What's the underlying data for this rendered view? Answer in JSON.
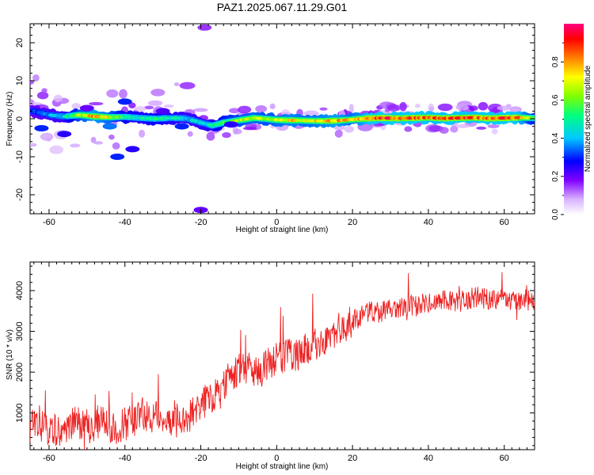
{
  "figure": {
    "title": "PAZ1.2025.067.11.29.G01"
  },
  "chart_data": [
    {
      "type": "heatmap",
      "name": "spectrogram",
      "xlabel": "Height of straight line (km)",
      "ylabel": "Frequency (Hz)",
      "xlim": [
        -65,
        68
      ],
      "ylim": [
        -25,
        25
      ],
      "xticks": [
        "-60",
        "-40",
        "-20",
        "0",
        "20",
        "40",
        "60"
      ],
      "xtick_values": [
        -60,
        -40,
        -20,
        0,
        20,
        40,
        60
      ],
      "yticks": [
        "-20",
        "-10",
        "0",
        "10",
        "20"
      ],
      "ytick_values": [
        -20,
        -10,
        0,
        10,
        20
      ],
      "colorbar": {
        "label": "Normalized spectral amplitude",
        "range": [
          0,
          1
        ],
        "ticks": [
          "0.0",
          "0.2",
          "0.4",
          "0.6",
          "0.8"
        ],
        "tick_values": [
          0.0,
          0.2,
          0.4,
          0.6,
          0.8
        ],
        "colors": [
          "#ffffff",
          "#d9b3ff",
          "#8000ff",
          "#0000ff",
          "#00c8ff",
          "#00ff80",
          "#80ff00",
          "#ffff00",
          "#ff8000",
          "#ff0000",
          "#ff0080"
        ]
      },
      "ridge": {
        "description": "Main signal ridge frequency (Hz) vs height (km)",
        "x": [
          -64,
          -60,
          -56,
          -52,
          -48,
          -44,
          -40,
          -36,
          -32,
          -28,
          -24,
          -20,
          -17,
          -14,
          -10,
          -6,
          -3,
          0,
          4,
          8,
          12,
          16,
          20,
          24,
          28,
          32,
          36,
          40,
          44,
          48,
          52,
          56,
          60,
          64,
          68
        ],
        "y": [
          2.0,
          1.0,
          0.6,
          1.0,
          0.6,
          0.4,
          0.5,
          0.2,
          0.0,
          0.2,
          0.1,
          -1.0,
          -1.8,
          -1.0,
          -0.4,
          0.2,
          0.0,
          -0.3,
          -0.4,
          -0.5,
          -0.6,
          -0.5,
          -0.2,
          0.1,
          0.2,
          0.1,
          0.2,
          0.3,
          0.1,
          0.2,
          0.3,
          0.1,
          0.2,
          0.3,
          0.2
        ],
        "amplitude": [
          0.35,
          0.4,
          0.45,
          0.7,
          0.85,
          0.75,
          0.55,
          0.5,
          0.55,
          0.5,
          0.45,
          0.45,
          0.5,
          0.6,
          0.7,
          0.75,
          0.7,
          0.75,
          0.8,
          0.75,
          0.8,
          0.85,
          0.75,
          0.9,
          0.95,
          0.9,
          0.95,
          0.9,
          0.9,
          0.92,
          0.9,
          0.92,
          0.95,
          0.9,
          0.6
        ]
      }
    },
    {
      "type": "line",
      "name": "snr",
      "xlabel": "Height of straight line (km)",
      "ylabel": "SNR (10 * v/v)",
      "xlim": [
        -65,
        68
      ],
      "ylim": [
        100,
        4700
      ],
      "xticks": [
        "-60",
        "-40",
        "-20",
        "0",
        "20",
        "40",
        "60"
      ],
      "xtick_values": [
        -60,
        -40,
        -20,
        0,
        20,
        40,
        60
      ],
      "yticks": [
        "1000",
        "2000",
        "3000",
        "4000"
      ],
      "ytick_values": [
        1000,
        2000,
        3000,
        4000
      ],
      "line_color": "#ee2222",
      "series": [
        {
          "x": [
            -65,
            -63,
            -61,
            -59,
            -57,
            -55,
            -53,
            -51,
            -49,
            -47,
            -45,
            -43,
            -41,
            -39,
            -37,
            -35,
            -33,
            -31,
            -29,
            -27,
            -25,
            -23,
            -21,
            -19,
            -17,
            -15,
            -13,
            -11,
            -9,
            -7,
            -5,
            -3,
            -1,
            1,
            3,
            5,
            7,
            9,
            11,
            13,
            15,
            17,
            19,
            21,
            23,
            25,
            27,
            29,
            31,
            33,
            35,
            37,
            39,
            41,
            43,
            45,
            47,
            49,
            51,
            53,
            55,
            57,
            59,
            61,
            63,
            65,
            67
          ],
          "values": [
            700,
            600,
            650,
            550,
            600,
            700,
            750,
            700,
            650,
            800,
            750,
            600,
            700,
            750,
            800,
            1000,
            900,
            850,
            900,
            800,
            850,
            900,
            1100,
            1300,
            1350,
            1600,
            1800,
            2000,
            2100,
            2150,
            1900,
            2200,
            2300,
            2350,
            2450,
            2400,
            2500,
            2600,
            2700,
            2800,
            2950,
            3100,
            3200,
            3300,
            3400,
            3500,
            3450,
            3550,
            3500,
            3600,
            3650,
            3600,
            3700,
            3650,
            3750,
            3800,
            3700,
            3750,
            3800,
            3850,
            3800,
            3750,
            3850,
            3800,
            3750,
            3800,
            3750
          ]
        }
      ]
    }
  ]
}
